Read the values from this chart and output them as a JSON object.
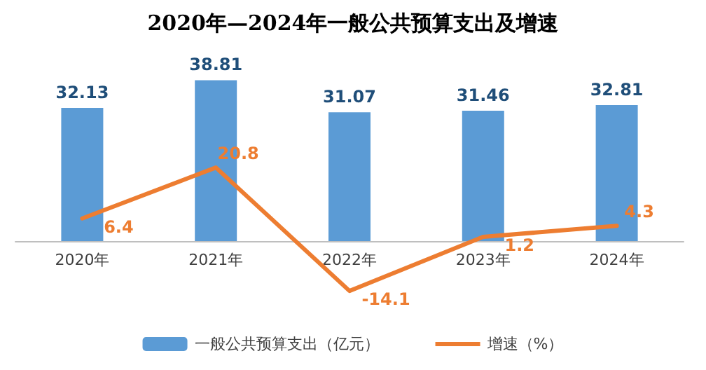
{
  "chart_data": {
    "type": "bar",
    "title": "2020年—2024年一般公共预算支出及增速",
    "categories": [
      "2020年",
      "2021年",
      "2022年",
      "2023年",
      "2024年"
    ],
    "series": [
      {
        "name": "一般公共预算支出（亿元）",
        "color": "#5b9bd5",
        "values": [
          32.13,
          38.81,
          31.07,
          31.46,
          32.81
        ]
      },
      {
        "name": "增速（%）",
        "type": "line",
        "color": "#ed7d31",
        "axis": "y2",
        "values": [
          6.4,
          20.8,
          -14.1,
          1.2,
          4.3
        ]
      }
    ],
    "data_labels": true,
    "legend": "bottom",
    "tick_labels": "x",
    "grid": false,
    "marker": "none",
    "line_style": "solid"
  }
}
